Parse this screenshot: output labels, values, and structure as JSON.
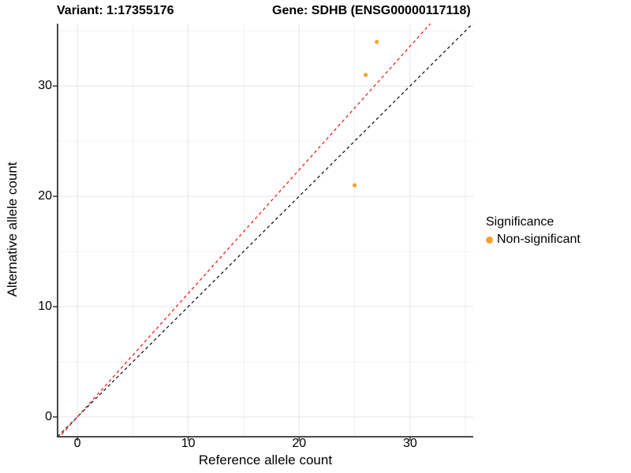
{
  "titles": {
    "left": "Variant: 1:17355176",
    "right": "Gene: SDHB (ENSG00000117118)"
  },
  "legend": {
    "title": "Significance",
    "items": [
      {
        "label": "Non-significant",
        "color": "#F8A12C"
      }
    ]
  },
  "colors": {
    "point": "#F8A12C",
    "identity_line": "#1A1A1A",
    "ratio_line": "#ED2024",
    "axis_line": "#333333",
    "grid_major": "#E4E4E4",
    "grid_minor": "#F0F0F0"
  },
  "chart_data": {
    "type": "scatter",
    "title_left": "Variant: 1:17355176",
    "title_right": "Gene: SDHB (ENSG00000117118)",
    "xlabel": "Reference allele count",
    "ylabel": "Alternative allele count",
    "xlim": [
      -1.78,
      35.7
    ],
    "ylim": [
      -1.72,
      35.65
    ],
    "x_ticks": [
      0,
      10,
      20,
      30
    ],
    "y_ticks": [
      0,
      10,
      20,
      30
    ],
    "x_minor_ticks": [
      5,
      15,
      25,
      35
    ],
    "y_minor_ticks": [
      5,
      15,
      25,
      35
    ],
    "grid": true,
    "legend_position": "right",
    "series": [
      {
        "name": "Non-significant",
        "color": "#F8A12C",
        "points": [
          [
            25,
            21
          ],
          [
            26,
            31
          ],
          [
            27,
            34
          ]
        ]
      }
    ],
    "lines": [
      {
        "name": "identity-line",
        "slope": 1.0,
        "intercept": 0,
        "color": "#1A1A1A",
        "dashed": true
      },
      {
        "name": "expected-ratio-line",
        "slope": 1.12,
        "intercept": 0,
        "color": "#ED2024",
        "dashed": true
      }
    ]
  }
}
